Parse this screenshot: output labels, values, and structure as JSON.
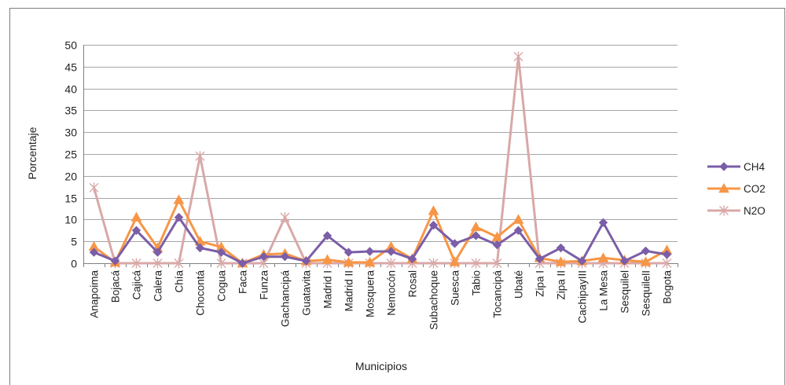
{
  "chart_data": {
    "type": "line",
    "title": "",
    "xlabel": "Municipios",
    "ylabel": "Porcentaje",
    "ylim": [
      0,
      50
    ],
    "yticks": [
      0,
      5,
      10,
      15,
      20,
      25,
      30,
      35,
      40,
      45,
      50
    ],
    "grid": "horizontal",
    "legend_position": "right",
    "categories": [
      "Anapoima",
      "Bojacá",
      "Cajicá",
      "Calera",
      "Chía",
      "Chocontá",
      "Cogua",
      "Faca",
      "Funza",
      "Gachancipá",
      "Guatavita",
      "Madrid I",
      "Madrid II",
      "Mosquera",
      "Nemocón",
      "Rosal",
      "Subachoque",
      "Suesca",
      "Tabio",
      "Tocancipá",
      "Ubaté",
      "Zipa I",
      "Zipa II",
      "CachipayIII",
      "La Mesa",
      "Sesquilel",
      "SesquilelI",
      "Bogota"
    ],
    "series": [
      {
        "name": "CH4",
        "color": "#7B5EA7",
        "marker": "diamond",
        "values": [
          2.5,
          0.5,
          7.5,
          2.5,
          10.5,
          3.5,
          2.5,
          0,
          1.5,
          1.5,
          0.5,
          6.3,
          2.5,
          2.7,
          2.7,
          1.0,
          8.7,
          4.5,
          6.3,
          4.2,
          7.5,
          1.0,
          3.5,
          0.5,
          9.3,
          0.5,
          2.8,
          2.0
        ]
      },
      {
        "name": "CO2",
        "color": "#F79646",
        "marker": "triangle",
        "values": [
          3.8,
          0.2,
          10.5,
          3.5,
          14.5,
          5.0,
          3.7,
          0,
          2.0,
          2.2,
          0.5,
          0.8,
          0.2,
          0.2,
          3.8,
          1.0,
          12.0,
          0.3,
          8.3,
          6.0,
          10.0,
          1.2,
          0.3,
          0.5,
          1.2,
          0.7,
          0.3,
          3.0
        ]
      },
      {
        "name": "N2O",
        "color": "#D9A8A8",
        "marker": "asterisk",
        "values": [
          17.3,
          0,
          0,
          0,
          0,
          24.5,
          0,
          0,
          0,
          10.5,
          0,
          0,
          0,
          0,
          0,
          0,
          0,
          0,
          0,
          0,
          47.3,
          0,
          0,
          0,
          0,
          0,
          0,
          0
        ]
      }
    ]
  },
  "style": {
    "grid_color": "#a6a6a6",
    "axis_color": "#808080",
    "frame_color": "#7f7f7f"
  }
}
